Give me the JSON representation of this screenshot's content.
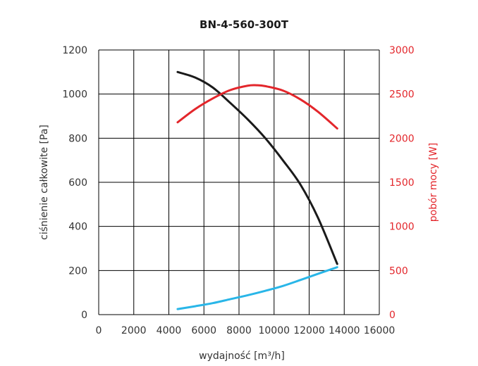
{
  "chart_data": {
    "type": "line",
    "title": "BN-4-560-300T",
    "xlabel": "wydajność [m³/h]",
    "ylabel": "ciśnienie całkowite [Pa]",
    "y2label": "pobór mocy [W]",
    "xlim": [
      0,
      16000
    ],
    "ylim": [
      0,
      1200
    ],
    "y2lim": [
      0,
      3000
    ],
    "xticks": [
      "0",
      "2000",
      "4000",
      "6000",
      "8000",
      "10000",
      "12000",
      "14000",
      "16000"
    ],
    "yticks": [
      "0",
      "200",
      "400",
      "600",
      "800",
      "1000",
      "1200"
    ],
    "y2ticks": [
      "0",
      "500",
      "1000",
      "1500",
      "2000",
      "2500",
      "3000"
    ],
    "grid": true,
    "colors": {
      "axis_left": "#333333",
      "axis_right": "#e3262b",
      "grid": "#000000"
    },
    "series": [
      {
        "axis": "left",
        "color": "#1a1a1a",
        "x": [
          4500,
          5500,
          6500,
          7500,
          8500,
          9500,
          10500,
          11500,
          12500,
          13600
        ],
        "y": [
          1100,
          1075,
          1030,
          960,
          885,
          800,
          700,
          590,
          440,
          230
        ]
      },
      {
        "axis": "right",
        "color": "#e3262b",
        "x": [
          4500,
          5500,
          6500,
          7500,
          8500,
          9000,
          9500,
          10500,
          11500,
          12500,
          13600
        ],
        "y": [
          2180,
          2330,
          2450,
          2545,
          2595,
          2600,
          2590,
          2540,
          2440,
          2300,
          2110
        ]
      },
      {
        "axis": "left",
        "color": "#29b6e8",
        "x": [
          4500,
          5500,
          6500,
          7500,
          8500,
          9500,
          10500,
          11500,
          12500,
          13600
        ],
        "y": [
          25,
          38,
          52,
          70,
          88,
          108,
          130,
          157,
          185,
          215
        ]
      }
    ]
  }
}
